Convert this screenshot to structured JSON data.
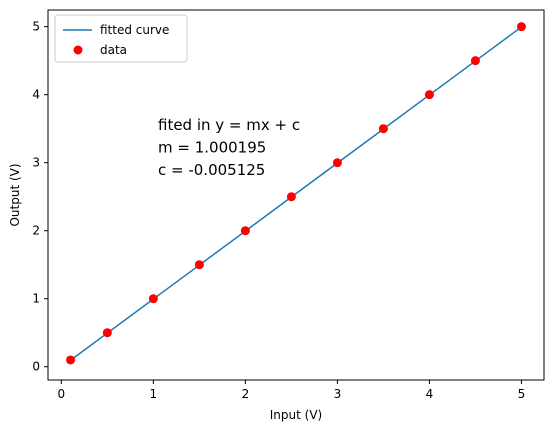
{
  "chart_data": {
    "type": "line",
    "xlabel": "Input (V)",
    "ylabel": "Output (V)",
    "xlim": [
      -0.145,
      5.245
    ],
    "ylim": [
      -0.195,
      5.245
    ],
    "xticks": [
      0,
      1,
      2,
      3,
      4,
      5
    ],
    "yticks": [
      0,
      1,
      2,
      3,
      4,
      5
    ],
    "grid": false,
    "legend_position": "top-left",
    "series": [
      {
        "name": "fitted curve",
        "kind": "line",
        "color": "#1f77b4",
        "x": [
          0.1,
          0.5,
          1.0,
          1.5,
          2.0,
          2.5,
          3.0,
          3.5,
          4.0,
          4.5,
          5.0
        ],
        "y": [
          0.095,
          0.495,
          0.995,
          1.495,
          1.995,
          2.495,
          2.996,
          3.496,
          3.996,
          4.496,
          4.996
        ]
      },
      {
        "name": "data",
        "kind": "scatter",
        "color": "#ff0000",
        "x": [
          0.1,
          0.5,
          1.0,
          1.5,
          2.0,
          2.5,
          3.0,
          3.5,
          4.0,
          4.5,
          5.0
        ],
        "y": [
          0.1,
          0.5,
          1.0,
          1.5,
          2.0,
          2.5,
          3.0,
          3.5,
          4.0,
          4.5,
          5.0
        ]
      }
    ],
    "annotations": [
      {
        "text": "fited in y = mx + c",
        "x": 1.05,
        "y": 3.48
      },
      {
        "text": "m = 1.000195",
        "x": 1.05,
        "y": 3.15
      },
      {
        "text": "c = -0.005125",
        "x": 1.05,
        "y": 2.82
      }
    ]
  }
}
